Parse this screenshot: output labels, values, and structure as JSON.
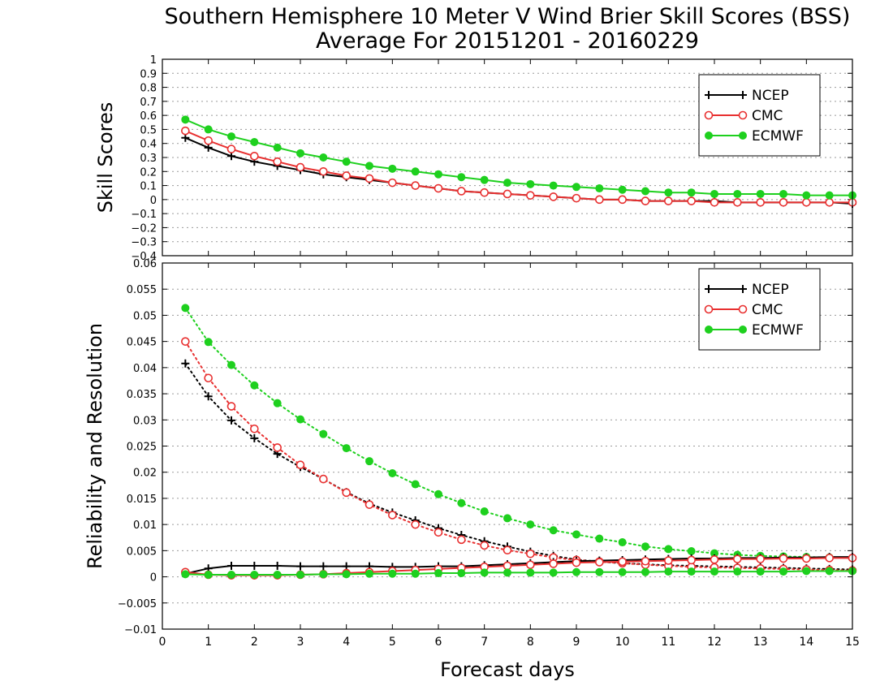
{
  "title_line1": "Southern Hemisphere 10 Meter V Wind Brier Skill Scores (BSS)",
  "title_line2": "Average For 20151201 - 20160229",
  "xlabel": "Forecast days",
  "colors": {
    "NCEP": "#000000",
    "CMC": "#e83030",
    "ECMWF": "#1ed01e"
  },
  "chart_data": [
    {
      "type": "line",
      "ylabel": "Skill Scores",
      "xlim": [
        0,
        15
      ],
      "ylim": [
        -0.4,
        1
      ],
      "xticks": [
        "0",
        "1",
        "2",
        "3",
        "4",
        "5",
        "6",
        "7",
        "8",
        "9",
        "10",
        "11",
        "12",
        "13",
        "14",
        "15"
      ],
      "yticks": [
        "-0.4",
        "-0.3",
        "-0.2",
        "-0.1",
        "0",
        "0.1",
        "0.2",
        "0.3",
        "0.4",
        "0.5",
        "0.6",
        "0.7",
        "0.8",
        "0.9",
        "1"
      ],
      "grid": true,
      "legend_position": "top-right",
      "x": [
        0.5,
        1,
        1.5,
        2,
        2.5,
        3,
        3.5,
        4,
        4.5,
        5,
        5.5,
        6,
        6.5,
        7,
        7.5,
        8,
        8.5,
        9,
        9.5,
        10,
        10.5,
        11,
        11.5,
        12,
        12.5,
        13,
        13.5,
        14,
        14.5,
        15
      ],
      "series": [
        {
          "name": "NCEP",
          "marker": "plus",
          "style": "solid",
          "values": [
            0.44,
            0.37,
            0.31,
            0.27,
            0.24,
            0.21,
            0.18,
            0.16,
            0.14,
            0.12,
            0.1,
            0.08,
            0.06,
            0.05,
            0.04,
            0.03,
            0.02,
            0.01,
            0.0,
            0.0,
            -0.01,
            -0.01,
            -0.01,
            -0.01,
            -0.02,
            -0.02,
            -0.02,
            -0.02,
            -0.02,
            -0.03
          ]
        },
        {
          "name": "CMC",
          "marker": "open-circle",
          "style": "solid",
          "values": [
            0.49,
            0.42,
            0.36,
            0.31,
            0.27,
            0.23,
            0.2,
            0.17,
            0.15,
            0.12,
            0.1,
            0.08,
            0.06,
            0.05,
            0.04,
            0.03,
            0.02,
            0.01,
            0.0,
            0.0,
            -0.01,
            -0.01,
            -0.01,
            -0.02,
            -0.02,
            -0.02,
            -0.02,
            -0.02,
            -0.02,
            -0.02
          ]
        },
        {
          "name": "ECMWF",
          "marker": "filled-circle",
          "style": "solid",
          "values": [
            0.57,
            0.5,
            0.45,
            0.41,
            0.37,
            0.33,
            0.3,
            0.27,
            0.24,
            0.22,
            0.2,
            0.18,
            0.16,
            0.14,
            0.12,
            0.11,
            0.1,
            0.09,
            0.08,
            0.07,
            0.06,
            0.05,
            0.05,
            0.04,
            0.04,
            0.04,
            0.04,
            0.03,
            0.03,
            0.03
          ]
        }
      ]
    },
    {
      "type": "line",
      "ylabel": "Reliability and Resolution",
      "xlim": [
        0,
        15
      ],
      "ylim": [
        -0.01,
        0.06
      ],
      "xticks": [
        "0",
        "1",
        "2",
        "3",
        "4",
        "5",
        "6",
        "7",
        "8",
        "9",
        "10",
        "11",
        "12",
        "13",
        "14",
        "15"
      ],
      "yticks": [
        "-0.01",
        "-0.005",
        "0",
        "0.005",
        "0.01",
        "0.015",
        "0.02",
        "0.025",
        "0.03",
        "0.035",
        "0.04",
        "0.045",
        "0.05",
        "0.055",
        "0.06"
      ],
      "grid": true,
      "legend_position": "top-right",
      "x": [
        0.5,
        1,
        1.5,
        2,
        2.5,
        3,
        3.5,
        4,
        4.5,
        5,
        5.5,
        6,
        6.5,
        7,
        7.5,
        8,
        8.5,
        9,
        9.5,
        10,
        10.5,
        11,
        11.5,
        12,
        12.5,
        13,
        13.5,
        14,
        14.5,
        15
      ],
      "series": [
        {
          "name": "NCEP",
          "marker": "plus",
          "style": "dotted",
          "role": "resolution",
          "values": [
            0.0408,
            0.0345,
            0.0299,
            0.0265,
            0.0235,
            0.021,
            0.0187,
            0.0162,
            0.014,
            0.0123,
            0.0108,
            0.0093,
            0.008,
            0.0068,
            0.0058,
            0.0048,
            0.004,
            0.0033,
            0.0029,
            0.0026,
            0.0024,
            0.0022,
            0.0021,
            0.002,
            0.0019,
            0.0018,
            0.0017,
            0.0016,
            0.0015,
            0.0014
          ]
        },
        {
          "name": "CMC",
          "marker": "open-circle",
          "style": "dotted",
          "role": "resolution",
          "values": [
            0.045,
            0.038,
            0.0326,
            0.0283,
            0.0247,
            0.0214,
            0.0187,
            0.0161,
            0.0138,
            0.0118,
            0.01,
            0.0085,
            0.0071,
            0.006,
            0.0051,
            0.0044,
            0.0037,
            0.0032,
            0.0029,
            0.0026,
            0.0023,
            0.0021,
            0.0019,
            0.0018,
            0.0017,
            0.0016,
            0.0015,
            0.0014,
            0.0013,
            0.0012
          ]
        },
        {
          "name": "ECMWF",
          "marker": "filled-circle",
          "style": "dotted",
          "role": "resolution",
          "values": [
            0.0514,
            0.0449,
            0.0405,
            0.0366,
            0.0332,
            0.0301,
            0.0273,
            0.0246,
            0.0221,
            0.0198,
            0.0177,
            0.0158,
            0.0141,
            0.0125,
            0.0112,
            0.01,
            0.0089,
            0.0081,
            0.0073,
            0.0066,
            0.0058,
            0.0053,
            0.0049,
            0.0045,
            0.0042,
            0.004,
            0.0039,
            0.0038,
            0.0037,
            0.0036
          ]
        },
        {
          "name": "NCEP",
          "marker": "plus",
          "style": "solid",
          "role": "reliability",
          "values": [
            0.0006,
            0.0016,
            0.0021,
            0.0021,
            0.0021,
            0.002,
            0.002,
            0.002,
            0.002,
            0.0019,
            0.0019,
            0.002,
            0.002,
            0.0022,
            0.0024,
            0.0026,
            0.0028,
            0.003,
            0.0031,
            0.0032,
            0.0033,
            0.0034,
            0.0035,
            0.0035,
            0.0036,
            0.0036,
            0.0037,
            0.0037,
            0.0038,
            0.0038
          ]
        },
        {
          "name": "CMC",
          "marker": "open-circle",
          "style": "solid",
          "role": "reliability",
          "values": [
            0.0009,
            0.0004,
            0.0003,
            0.0003,
            0.0003,
            0.0004,
            0.0005,
            0.0007,
            0.0009,
            0.0011,
            0.0013,
            0.0015,
            0.0017,
            0.0019,
            0.0021,
            0.0023,
            0.0025,
            0.0027,
            0.0028,
            0.0029,
            0.003,
            0.0031,
            0.0032,
            0.0033,
            0.0034,
            0.0034,
            0.0035,
            0.0035,
            0.0036,
            0.0036
          ]
        },
        {
          "name": "ECMWF",
          "marker": "filled-circle",
          "style": "solid",
          "role": "reliability",
          "values": [
            0.0005,
            0.0004,
            0.0004,
            0.0004,
            0.0004,
            0.0004,
            0.0005,
            0.0005,
            0.0006,
            0.0006,
            0.0006,
            0.0007,
            0.0007,
            0.0008,
            0.0008,
            0.0008,
            0.0008,
            0.0009,
            0.0009,
            0.0009,
            0.0009,
            0.001,
            0.001,
            0.001,
            0.001,
            0.001,
            0.001,
            0.0011,
            0.0011,
            0.0011
          ]
        }
      ]
    }
  ]
}
